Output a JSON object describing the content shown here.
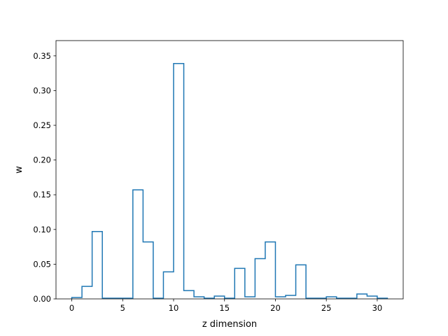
{
  "chart_data": {
    "type": "bar",
    "style": "step-histogram",
    "xlabel": "z dimension",
    "ylabel": "w",
    "xlim": [
      -1.55,
      32.55
    ],
    "ylim": [
      0,
      0.372
    ],
    "xticks": [
      0,
      5,
      10,
      15,
      20,
      25,
      30
    ],
    "yticks": [
      0.0,
      0.05,
      0.1,
      0.15,
      0.2,
      0.25,
      0.3,
      0.35
    ],
    "grid": false,
    "line_color": "#1f77b4",
    "x": [
      0,
      1,
      2,
      3,
      4,
      5,
      6,
      7,
      8,
      9,
      10,
      11,
      12,
      13,
      14,
      15,
      16,
      17,
      18,
      19,
      20,
      21,
      22,
      23,
      24,
      25,
      26,
      27,
      28,
      29,
      30
    ],
    "values": [
      0.002,
      0.018,
      0.097,
      0.001,
      0.001,
      0.001,
      0.157,
      0.082,
      0.001,
      0.039,
      0.339,
      0.012,
      0.003,
      0.001,
      0.004,
      0.001,
      0.044,
      0.003,
      0.058,
      0.082,
      0.003,
      0.005,
      0.049,
      0.001,
      0.001,
      0.003,
      0.001,
      0.001,
      0.007,
      0.004,
      0.001
    ]
  }
}
